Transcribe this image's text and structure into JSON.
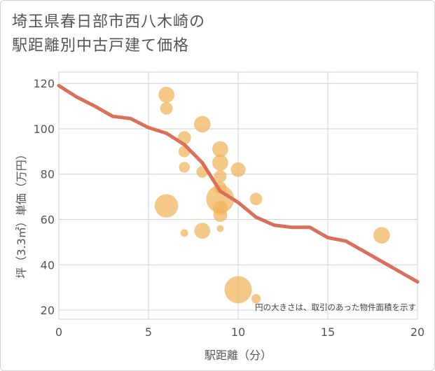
{
  "title": {
    "line1": "埼玉県春日部市西八木崎の",
    "line2": "駅距離別中古戸建て価格"
  },
  "chart_data": {
    "type": "scatter",
    "title": "埼玉県春日部市西八木崎の駅距離別中古戸建て価格",
    "xlabel": "駅距離（分）",
    "ylabel": "坪（3.3㎡）単価（万円）",
    "xlim": [
      0,
      20
    ],
    "ylim": [
      16,
      125
    ],
    "xticks": [
      0,
      5,
      10,
      15,
      20
    ],
    "yticks": [
      20,
      40,
      60,
      80,
      100,
      120
    ],
    "grid": true,
    "note": "円の大きさは、取引のあった物件面積を示す",
    "colors": {
      "bubble": "#f0b45a",
      "trend": "#d9705a",
      "grid": "#c8d4e0",
      "axis_text": "#555555"
    },
    "scatter": [
      {
        "x": 6,
        "y": 115,
        "size": 130
      },
      {
        "x": 6,
        "y": 109,
        "size": 80
      },
      {
        "x": 6,
        "y": 66,
        "size": 280
      },
      {
        "x": 7,
        "y": 96,
        "size": 90
      },
      {
        "x": 7,
        "y": 90,
        "size": 70
      },
      {
        "x": 7,
        "y": 83,
        "size": 60
      },
      {
        "x": 7,
        "y": 54,
        "size": 30
      },
      {
        "x": 8,
        "y": 102,
        "size": 140
      },
      {
        "x": 8,
        "y": 81,
        "size": 70
      },
      {
        "x": 8,
        "y": 55,
        "size": 130
      },
      {
        "x": 9,
        "y": 91,
        "size": 130
      },
      {
        "x": 9,
        "y": 85,
        "size": 130
      },
      {
        "x": 9,
        "y": 79,
        "size": 80
      },
      {
        "x": 9,
        "y": 74,
        "size": 80
      },
      {
        "x": 9,
        "y": 69,
        "size": 400
      },
      {
        "x": 9,
        "y": 65,
        "size": 110
      },
      {
        "x": 9,
        "y": 62,
        "size": 100
      },
      {
        "x": 9,
        "y": 56,
        "size": 25
      },
      {
        "x": 10,
        "y": 82,
        "size": 110
      },
      {
        "x": 10,
        "y": 29,
        "size": 380
      },
      {
        "x": 11,
        "y": 69,
        "size": 80
      },
      {
        "x": 11,
        "y": 25,
        "size": 45
      },
      {
        "x": 18,
        "y": 53,
        "size": 140
      }
    ],
    "trend_line": {
      "x": [
        0,
        1,
        2,
        3,
        4,
        5,
        6,
        7,
        8,
        9,
        10,
        11,
        12,
        13,
        14,
        15,
        16,
        17,
        18,
        19,
        20
      ],
      "y": [
        119,
        114,
        110,
        105.5,
        104.5,
        100.5,
        98,
        93,
        85,
        72.5,
        67.5,
        61,
        57.5,
        56.5,
        56.5,
        52,
        50.5,
        46,
        41.5,
        37,
        32.5
      ]
    }
  }
}
